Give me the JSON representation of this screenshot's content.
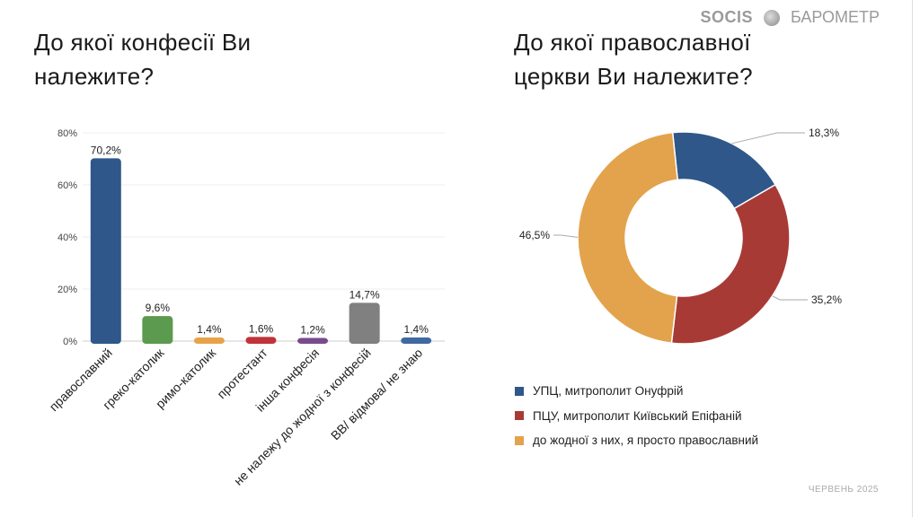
{
  "brand": {
    "logo": "SOCIS",
    "name": "БАРОМЕТР"
  },
  "footer": "ЧЕРВЕНЬ 2025",
  "chart_data": [
    {
      "type": "bar",
      "title": "До якої конфесії Ви належите?",
      "categories": [
        "православний",
        "греко-католик",
        "римо-католик",
        "протестант",
        "інша конфесія",
        "не належу до жодної з конфесій",
        "ВВ/ відмова/ не знаю"
      ],
      "values": [
        70.2,
        9.6,
        1.4,
        1.6,
        1.2,
        14.7,
        1.4
      ],
      "labels": [
        "70,2%",
        "9,6%",
        "1,4%",
        "1,6%",
        "1,2%",
        "14,7%",
        "1,4%"
      ],
      "colors": [
        "#2f5789",
        "#5b9a4f",
        "#e8a34a",
        "#c0333a",
        "#7a4a8c",
        "#808080",
        "#3f6aa0"
      ],
      "yticks": [
        "0%",
        "20%",
        "40%",
        "60%",
        "80%"
      ],
      "ylim": [
        0,
        80
      ],
      "grid": true
    },
    {
      "type": "pie",
      "title": "До якої православної церкви Ви належите?",
      "categories": [
        "УПЦ, митрополит Онуфрій",
        "ПЦУ, митрополит Київський Епіфаній",
        "до жодної з них, я просто православний"
      ],
      "values": [
        18.3,
        35.2,
        46.5
      ],
      "labels": [
        "18,3%",
        "35,2%",
        "46,5%"
      ],
      "colors": [
        "#2f5789",
        "#a83a36",
        "#e3a34c"
      ],
      "donut": true,
      "legend": "bottom"
    }
  ]
}
